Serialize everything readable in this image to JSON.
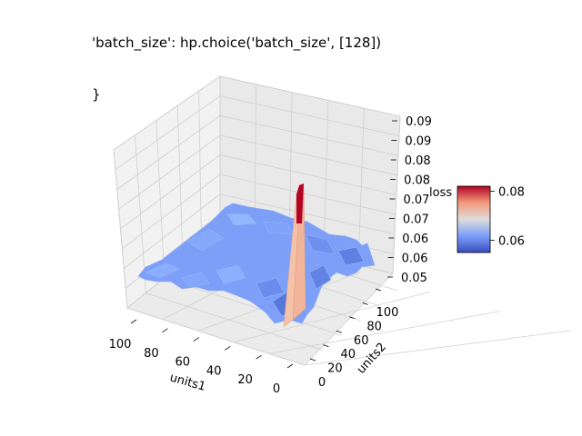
{
  "title_lines": [
    "'batch_size': hp.choice('batch_size', [128])",
    "}"
  ],
  "chart_data": {
    "type": "surface",
    "xlabel": "units1",
    "ylabel": "units2",
    "zlabel": "loss",
    "x_ticks": [
      "100",
      "80",
      "60",
      "40",
      "20",
      "0"
    ],
    "y_ticks": [
      "0",
      "20",
      "40",
      "60",
      "80",
      "100"
    ],
    "z_ticks": [
      "0.09",
      "0.09",
      "0.08",
      "0.08",
      "0.07",
      "0.07",
      "0.06",
      "0.06",
      "0.05"
    ],
    "z_range": [
      0.05,
      0.09
    ],
    "baseline_loss": 0.058,
    "spike": {
      "units1": 5,
      "units2": 40,
      "loss": 0.082
    },
    "colorbar": {
      "cmap": "coolwarm",
      "ticks": [
        "0.08",
        "0.06"
      ],
      "range": [
        0.055,
        0.082
      ]
    },
    "grid": true,
    "colors": {
      "low": "#3b4cc0",
      "mid": "#dddddd",
      "high": "#b40426",
      "surface": "#7b9ff9",
      "edge": "#8fb0fb"
    }
  }
}
